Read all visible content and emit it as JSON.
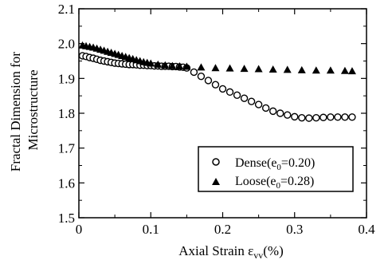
{
  "chart_data": {
    "type": "scatter",
    "xlabel": "Axial Strain  ε",
    "xlabel_sub": "vv",
    "xlabel_unit": "(%)",
    "ylabel_line1": "Fractal Dimension for",
    "ylabel_line2": "Microstructure",
    "xlim": [
      0,
      0.4
    ],
    "ylim": [
      1.5,
      2.1
    ],
    "xticks": [
      0,
      0.1,
      0.2,
      0.3,
      0.4
    ],
    "xtick_labels": [
      "0",
      "0.1",
      "0.2",
      "0.3",
      "0.4"
    ],
    "yticks": [
      1.5,
      1.6,
      1.7,
      1.8,
      1.9,
      2.0,
      2.1
    ],
    "ytick_labels": [
      "1.5",
      "1.6",
      "1.7",
      "1.8",
      "1.9",
      "2.0",
      "2.1"
    ],
    "legend_position": "bottom-right",
    "series": [
      {
        "name": "Dense(e",
        "name_sub": "0",
        "name_tail": "=0.20)",
        "marker": "open-circle",
        "color": "#000000",
        "x": [
          0.005,
          0.01,
          0.015,
          0.02,
          0.025,
          0.03,
          0.035,
          0.04,
          0.045,
          0.05,
          0.055,
          0.06,
          0.065,
          0.07,
          0.075,
          0.08,
          0.085,
          0.09,
          0.095,
          0.1,
          0.105,
          0.11,
          0.115,
          0.12,
          0.125,
          0.13,
          0.135,
          0.14,
          0.145,
          0.15,
          0.16,
          0.17,
          0.18,
          0.19,
          0.2,
          0.21,
          0.22,
          0.23,
          0.24,
          0.25,
          0.26,
          0.27,
          0.28,
          0.29,
          0.3,
          0.31,
          0.32,
          0.33,
          0.34,
          0.35,
          0.36,
          0.37,
          0.38
        ],
        "y": [
          1.965,
          1.963,
          1.96,
          1.958,
          1.955,
          1.952,
          1.95,
          1.948,
          1.946,
          1.944,
          1.943,
          1.942,
          1.941,
          1.94,
          1.94,
          1.939,
          1.938,
          1.938,
          1.937,
          1.937,
          1.936,
          1.936,
          1.935,
          1.935,
          1.935,
          1.934,
          1.934,
          1.933,
          1.932,
          1.93,
          1.918,
          1.906,
          1.894,
          1.882,
          1.87,
          1.861,
          1.852,
          1.843,
          1.834,
          1.825,
          1.815,
          1.806,
          1.8,
          1.795,
          1.79,
          1.787,
          1.786,
          1.787,
          1.788,
          1.789,
          1.789,
          1.789,
          1.789
        ]
      },
      {
        "name": "Loose(e",
        "name_sub": "0",
        "name_tail": "=0.28)",
        "marker": "filled-triangle",
        "color": "#000000",
        "x": [
          0.005,
          0.01,
          0.015,
          0.02,
          0.025,
          0.03,
          0.035,
          0.04,
          0.045,
          0.05,
          0.055,
          0.06,
          0.065,
          0.07,
          0.075,
          0.08,
          0.085,
          0.09,
          0.095,
          0.1,
          0.11,
          0.12,
          0.13,
          0.14,
          0.15,
          0.17,
          0.19,
          0.21,
          0.23,
          0.25,
          0.27,
          0.29,
          0.31,
          0.33,
          0.35,
          0.37,
          0.38
        ],
        "y": [
          1.995,
          1.993,
          1.991,
          1.989,
          1.986,
          1.983,
          1.98,
          1.977,
          1.974,
          1.971,
          1.968,
          1.965,
          1.962,
          1.959,
          1.956,
          1.953,
          1.95,
          1.947,
          1.945,
          1.943,
          1.94,
          1.938,
          1.936,
          1.935,
          1.934,
          1.932,
          1.93,
          1.929,
          1.928,
          1.927,
          1.926,
          1.925,
          1.924,
          1.923,
          1.923,
          1.922,
          1.921
        ]
      }
    ]
  }
}
